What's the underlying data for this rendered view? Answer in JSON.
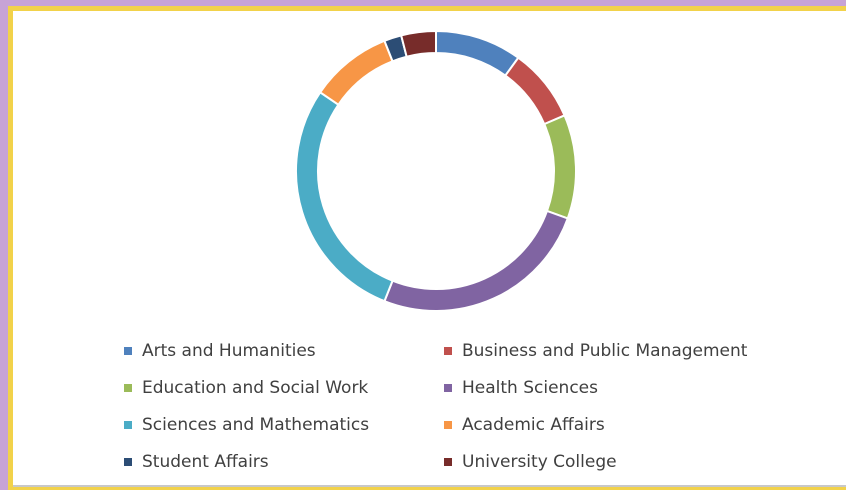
{
  "chart_data": {
    "type": "donut",
    "categories": [
      "Arts and Humanities",
      "Business and Public Management",
      "Education and Social Work",
      "Health Sciences",
      "Sciences and Mathematics",
      "Academic Affairs",
      "Student Affairs",
      "University College"
    ],
    "values": [
      10,
      8.5,
      12,
      25.5,
      28.5,
      9.5,
      2,
      4
    ],
    "colors": [
      "#4f81bd",
      "#c0504d",
      "#9bbb59",
      "#8064a2",
      "#4bacc6",
      "#f79646",
      "#2c4d75",
      "#772c2a"
    ],
    "legend": "bottom"
  }
}
